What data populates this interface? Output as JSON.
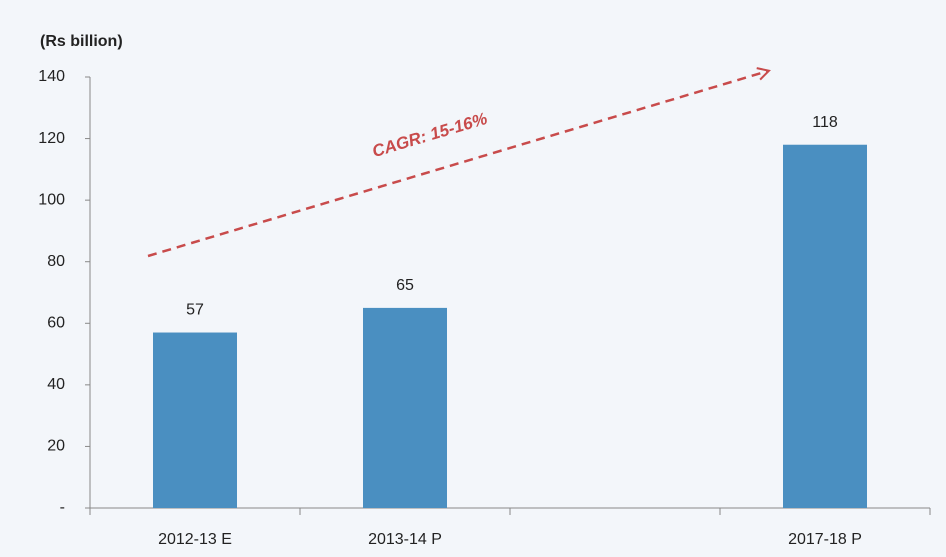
{
  "chart_data": {
    "type": "bar",
    "y_label": "(Rs billion)",
    "annotation": "CAGR: 15-16%",
    "categories": [
      "2012-13 E",
      "2013-14 P",
      null,
      "2017-18 P"
    ],
    "values": [
      57,
      65,
      null,
      118
    ],
    "color": "#4a8fc1",
    "ylim": [
      0,
      140
    ],
    "yticks": [
      {
        "value": 0,
        "label": "-"
      },
      20,
      40,
      60,
      80,
      100,
      120,
      140
    ]
  }
}
